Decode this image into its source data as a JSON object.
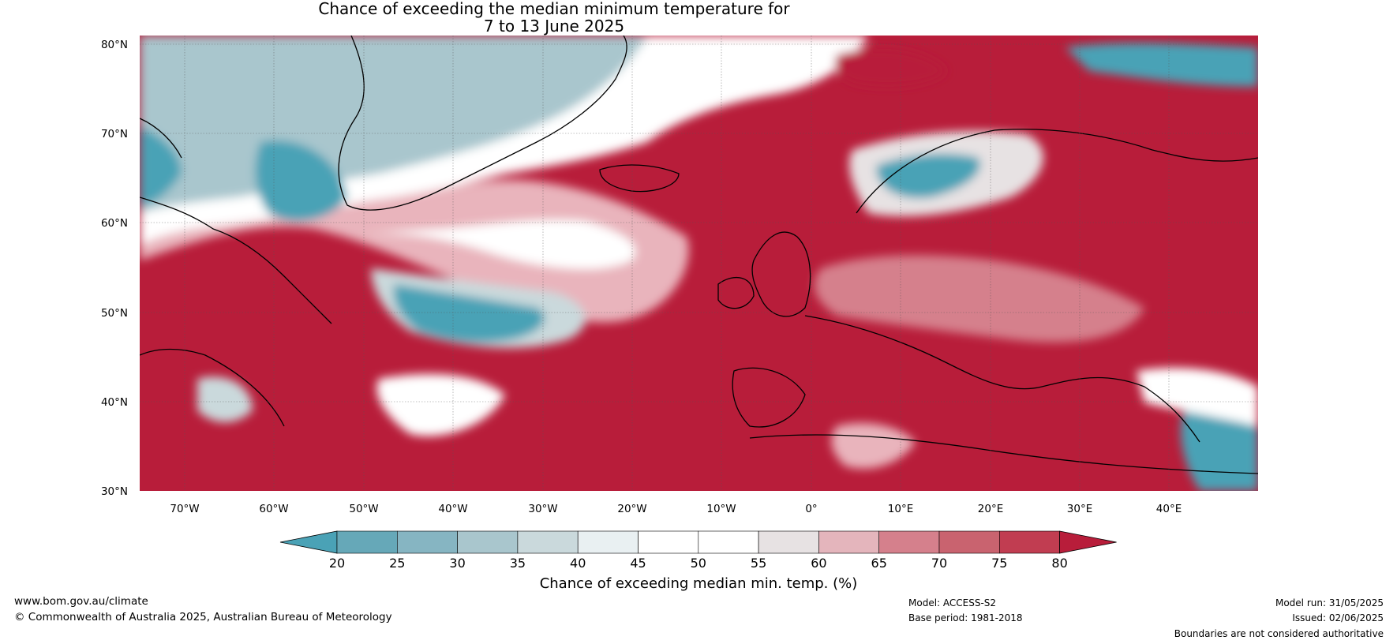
{
  "title": {
    "line1": "Chance of exceeding the median minimum temperature for",
    "line2": "7 to 13 June 2025"
  },
  "map": {
    "lat_labels": [
      "80°N",
      "70°N",
      "60°N",
      "50°N",
      "40°N",
      "30°N"
    ],
    "lon_labels": [
      "70°W",
      "60°W",
      "50°W",
      "40°W",
      "30°W",
      "20°W",
      "10°W",
      "0°",
      "10°E",
      "20°E",
      "30°E",
      "40°E"
    ],
    "lat_range": [
      30,
      81
    ],
    "lon_range": [
      -75,
      50
    ],
    "colors": {
      "warm_strong": "#b81d3a",
      "warm_mid": "#d06a7a",
      "warm_light": "#e9b4bc",
      "neutral": "#ffffff",
      "cool_light": "#b6cfd6",
      "cool_strong": "#4aa2b6",
      "land_outline": "#000000",
      "borders": "#777777"
    }
  },
  "colorbar": {
    "ticks": [
      "20",
      "25",
      "30",
      "35",
      "40",
      "45",
      "50",
      "55",
      "60",
      "65",
      "70",
      "75",
      "80"
    ],
    "colors": [
      "#4aa2b6",
      "#66a8b8",
      "#86b5c2",
      "#a9c6cd",
      "#cad9dc",
      "#e9f0f2",
      "#ffffff",
      "#ffffff",
      "#e7e2e3",
      "#e4b5bc",
      "#d5808c",
      "#c9636f",
      "#c13d51",
      "#b81d3a"
    ],
    "label": "Chance of exceeding median min. temp. (%)"
  },
  "footer": {
    "url": "www.bom.gov.au/climate",
    "copyright": "© Commonwealth of Australia 2025, Australian Bureau of Meteorology",
    "model": "Model: ACCESS-S2",
    "base_period": "Base period: 1981-2018",
    "model_run": "Model run: 31/05/2025",
    "issued": "Issued: 02/06/2025",
    "disclaimer": "Boundaries are not considered authoritative"
  }
}
